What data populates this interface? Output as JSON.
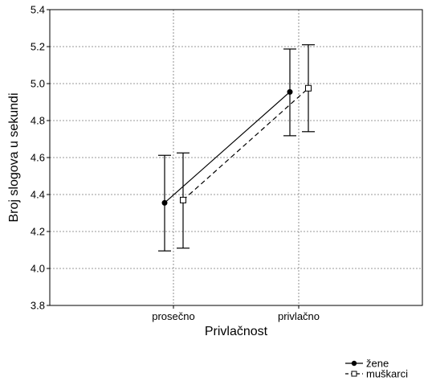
{
  "chart_data": {
    "type": "line",
    "xlabel": "Privlačnost",
    "ylabel": "Broj slogova u sekundi",
    "categories": [
      "prosečno",
      "privlačno"
    ],
    "ylim": [
      3.8,
      5.4
    ],
    "yticks": [
      "3.8",
      "4.0",
      "4.2",
      "4.4",
      "4.6",
      "4.8",
      "5.0",
      "5.2",
      "5.4"
    ],
    "grid": true,
    "legend_position": "bottom-right",
    "series": [
      {
        "name": "žene",
        "line_style": "solid",
        "marker": "filled-circle",
        "values": [
          4.355,
          4.955
        ],
        "error_low": [
          4.095,
          4.718
        ],
        "error_high": [
          4.612,
          5.187
        ]
      },
      {
        "name": "muškarci",
        "line_style": "dashed",
        "marker": "open-square",
        "values": [
          4.37,
          4.975
        ],
        "error_low": [
          4.11,
          4.74
        ],
        "error_high": [
          4.625,
          5.21
        ]
      }
    ]
  }
}
